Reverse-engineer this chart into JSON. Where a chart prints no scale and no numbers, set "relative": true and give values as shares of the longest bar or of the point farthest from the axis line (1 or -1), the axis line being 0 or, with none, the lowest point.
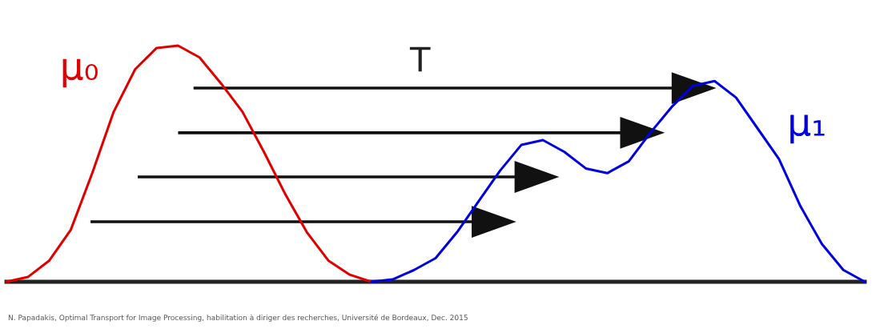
{
  "chart_data": {
    "type": "line",
    "relative": true,
    "categories": [
      null,
      null,
      null,
      null,
      null,
      null,
      null,
      null,
      null,
      null,
      null,
      null,
      null,
      null,
      null,
      null,
      null,
      null,
      null,
      null,
      null,
      null,
      null,
      null,
      null,
      null,
      null,
      null,
      null,
      null,
      null,
      null,
      null,
      null,
      null,
      null,
      null,
      null,
      null,
      null,
      null
    ],
    "series": [
      {
        "name": "μ₀",
        "color": "#e00000",
        "values": [
          0,
          0.02,
          0.09,
          0.22,
          0.46,
          0.72,
          0.9,
          0.99,
          1.0,
          0.95,
          0.84,
          0.72,
          0.55,
          0.37,
          0.21,
          0.09,
          0.03,
          0.0,
          null,
          null,
          null,
          null,
          null,
          null,
          null,
          null,
          null,
          null,
          null,
          null,
          null,
          null,
          null,
          null,
          null,
          null,
          null,
          null,
          null,
          null,
          null
        ]
      },
      {
        "name": "μ₁",
        "color": "#0000e0",
        "values": [
          null,
          null,
          null,
          null,
          null,
          null,
          null,
          null,
          null,
          null,
          null,
          null,
          null,
          null,
          null,
          null,
          null,
          0,
          0.01,
          0.05,
          0.1,
          0.21,
          0.34,
          0.47,
          0.58,
          0.6,
          0.55,
          0.48,
          0.46,
          0.51,
          0.63,
          0.74,
          0.83,
          0.85,
          0.78,
          0.65,
          0.52,
          0.32,
          0.16,
          0.05,
          0
        ]
      }
    ],
    "annotations": [
      "T",
      "N. Papadakis, Optimal Transport for Image Processing, habilitation à diriger des recherches, Université de Bordeaux, Dec. 2015"
    ],
    "grid": false,
    "legend": false,
    "marker": "none",
    "line_style": "solid"
  }
}
